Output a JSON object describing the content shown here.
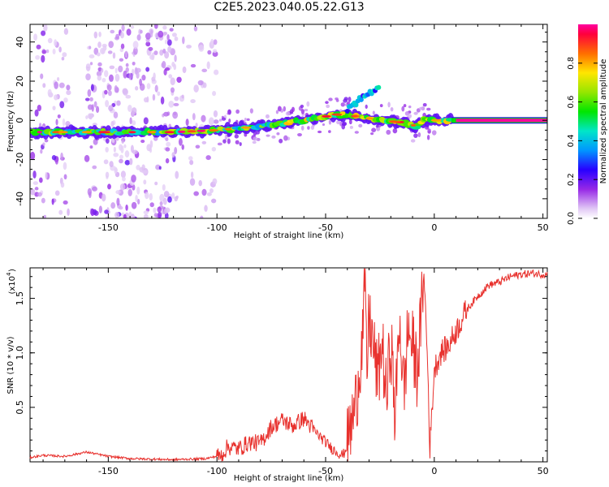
{
  "title": "C2E5.2023.040.05.22.G13",
  "chart_data": [
    {
      "type": "heatmap",
      "xlabel": "Height of straight line (km)",
      "ylabel": "Frequency (Hz)",
      "xlim": [
        -186,
        52
      ],
      "ylim": [
        -50,
        49
      ],
      "xticks": [
        "-150",
        "-100",
        "-50",
        "0",
        "50"
      ],
      "yticks": [
        "-40",
        "-20",
        "0",
        "20",
        "40"
      ],
      "colorbar": {
        "label": "Normalized spectral amplitude",
        "ticks": [
          "0.0",
          "0.2",
          "0.4",
          "0.6",
          "0.8"
        ],
        "range": [
          0,
          1
        ]
      },
      "ridge": {
        "x": [
          -186,
          -150,
          -120,
          -100,
          -80,
          -60,
          -45,
          -35,
          -25,
          -15,
          -8,
          -5,
          0,
          10,
          52
        ],
        "y": [
          -6,
          -6,
          -6,
          -5,
          -3,
          0,
          3,
          2,
          0,
          -1,
          -3,
          0,
          0,
          0,
          0
        ]
      },
      "branch": {
        "x": [
          -40,
          -35,
          -30,
          -25
        ],
        "y": [
          6,
          10,
          14,
          17
        ]
      },
      "grid": false
    },
    {
      "type": "line",
      "xlabel": "Height of straight line (km)",
      "ylabel": "SNR (10 * v/v)",
      "multiplier": "(x10",
      "multiplier_exp": "4",
      "multiplier_close": ")",
      "xlim": [
        -186,
        52
      ],
      "ylim": [
        0,
        1.78
      ],
      "xticks": [
        "-150",
        "-100",
        "-50",
        "0",
        "50"
      ],
      "yticks": [
        "0.5",
        "1.0",
        "1.5"
      ],
      "color": "#e8312d",
      "series": [
        {
          "x": [
            -186,
            -180,
            -170,
            -165,
            -160,
            -150,
            -140,
            -120,
            -105,
            -98,
            -95,
            -90,
            -85,
            -80,
            -75,
            -70,
            -65,
            -60,
            -55,
            -50,
            -47,
            -44,
            -42,
            -40,
            -38,
            -36,
            -34,
            -33,
            -32,
            -31,
            -30,
            -28,
            -26,
            -24,
            -22,
            -20,
            -18,
            -16,
            -14,
            -12,
            -10,
            -8,
            -6,
            -5,
            -4,
            -3,
            -2,
            0,
            3,
            6,
            10,
            15,
            20,
            25,
            30,
            35,
            40,
            45,
            50,
            52
          ],
          "y": [
            0.04,
            0.06,
            0.05,
            0.07,
            0.09,
            0.05,
            0.03,
            0.02,
            0.03,
            0.06,
            0.14,
            0.12,
            0.18,
            0.17,
            0.32,
            0.38,
            0.33,
            0.4,
            0.28,
            0.18,
            0.12,
            0.08,
            0.06,
            0.15,
            0.35,
            0.55,
            0.95,
            1.15,
            1.67,
            0.8,
            1.35,
            1.05,
            0.75,
            1.1,
            0.55,
            1.15,
            0.38,
            1.35,
            0.6,
            1.25,
            1.05,
            0.85,
            1.3,
            1.75,
            1.4,
            0.85,
            0.12,
            0.85,
            1.0,
            1.05,
            1.2,
            1.4,
            1.52,
            1.62,
            1.65,
            1.7,
            1.72,
            1.73,
            1.72,
            1.72
          ]
        }
      ],
      "grid": false
    }
  ]
}
